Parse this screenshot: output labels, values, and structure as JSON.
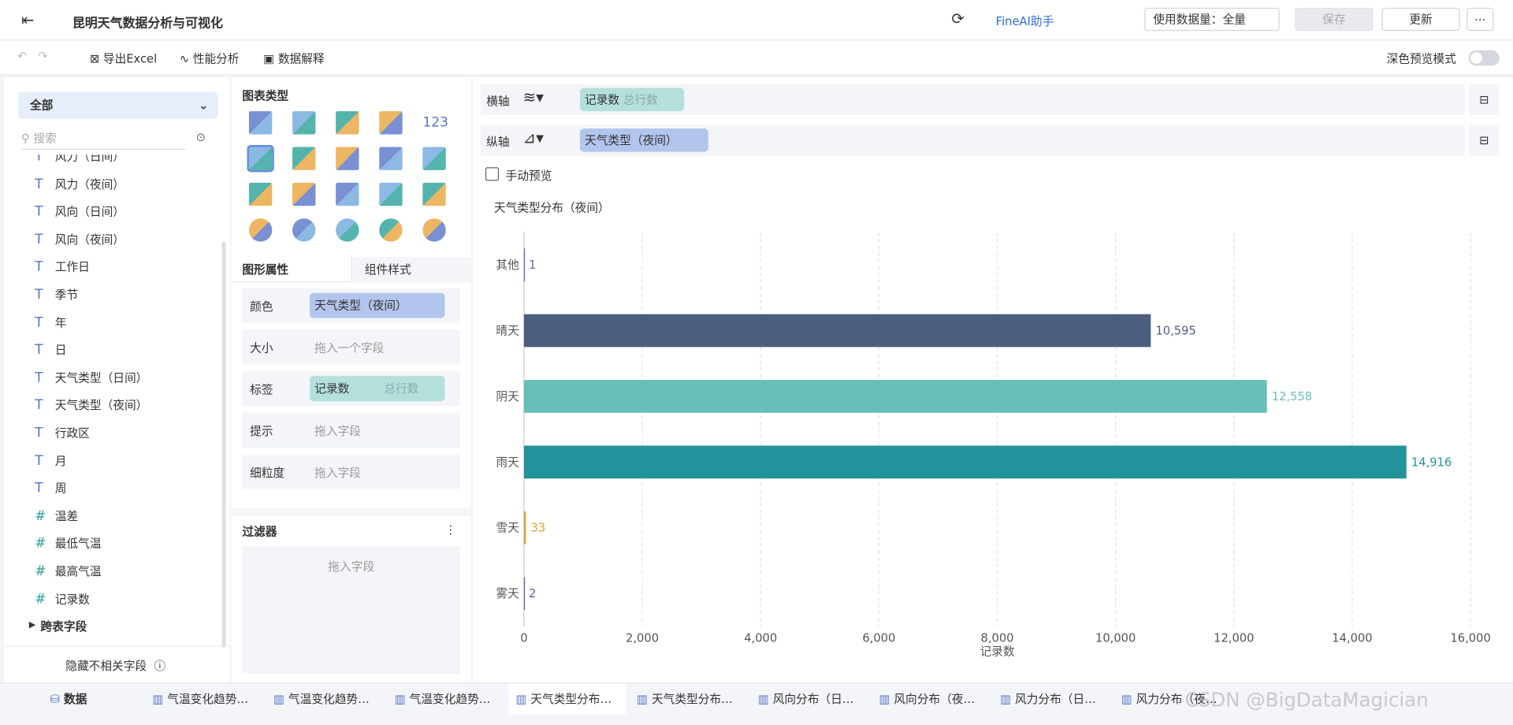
{
  "header": {
    "title": "昆明天气数据分析与可视化",
    "ai": "FineAI助手",
    "data_amount": "使用数据量：全量",
    "save": "保存",
    "update": "更新"
  },
  "toolbar": {
    "export": "导出Excel",
    "perf": "性能分析",
    "explain": "数据解释",
    "dark_mode": "深色预览模式"
  },
  "sidebar": {
    "dropdown": "全部",
    "search": "搜索",
    "dimensions": [
      "风力（日间）",
      "风力（夜间）",
      "风向（日间）",
      "风向（夜间）",
      "工作日",
      "季节",
      "年",
      "日",
      "天气类型（日间）",
      "天气类型（夜间）",
      "行政区",
      "月",
      "周"
    ],
    "measures": [
      "温差",
      "最低气温",
      "最高气温",
      "记录数"
    ],
    "cross": "跨表字段",
    "hide": "隐藏不相关字段"
  },
  "chart_panel": {
    "title": "图表类型",
    "number_icon": "123"
  },
  "properties": {
    "tabs": [
      "图形属性",
      "组件样式"
    ],
    "rows": [
      {
        "label": "颜色",
        "field": "天气类型（夜间）"
      },
      {
        "label": "大小",
        "placeholder": "拖入一个字段"
      },
      {
        "label": "标签",
        "field": "记录数",
        "extra": "总行数"
      },
      {
        "label": "提示",
        "placeholder": "拖入字段"
      },
      {
        "label": "细粒度",
        "placeholder": "拖入字段"
      }
    ]
  },
  "filter": {
    "title": "过滤器",
    "placeholder": "拖入字段"
  },
  "axes": {
    "x_label": "横轴",
    "x_field": "记录数",
    "x_extra": "总行数",
    "y_label": "纵轴",
    "y_field": "天气类型（夜间）",
    "manual": "手动预览"
  },
  "chart_data": {
    "type": "hbar",
    "title": "天气类型分布（夜间）",
    "categories": [
      "其他",
      "晴天",
      "阴天",
      "雨天",
      "雪天",
      "雾天"
    ],
    "values": [
      1,
      10595,
      12558,
      14916,
      33,
      2
    ],
    "value_labels": [
      "1",
      "10,595",
      "12,558",
      "14,916",
      "33",
      "2"
    ],
    "colors": [
      "#5b6bbf",
      "#4c5e80",
      "#67bfb8",
      "#23939b",
      "#e0a030",
      "#6a5aa6"
    ],
    "xlabel": "记录数",
    "xlim": [
      0,
      16000
    ],
    "xticks": [
      0,
      {
        "value": 2000,
        "label": "2,000"
      },
      {
        "value": 4000,
        "label": "4,000"
      },
      {
        "value": 6000,
        "label": "6,000"
      },
      {
        "value": 8000,
        "label": "8,000"
      },
      {
        "value": 10000,
        "label": "10,000"
      },
      {
        "value": 12000,
        "label": "12,000"
      },
      {
        "value": 14000,
        "label": "14,000"
      },
      {
        "value": 16000,
        "label": "16,000"
      }
    ],
    "grid": true
  },
  "tabs": [
    "数据",
    "气温变化趋势…",
    "气温变化趋势…",
    "气温变化趋势…",
    "天气类型分布…",
    "天气类型分布…",
    "风向分布（日…",
    "风向分布（夜…",
    "风力分布（日…",
    "风力分布（夜…"
  ],
  "watermark": "CSDN @BigDataMagician"
}
